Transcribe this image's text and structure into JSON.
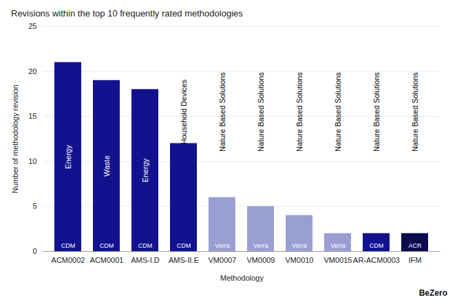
{
  "chart_data": {
    "type": "bar",
    "title": "Revisions within the top 10 frequently rated methodologies",
    "x_label": "Methodology",
    "y_label": "Number of methodology revision",
    "categories": [
      "ACM0002",
      "ACM0001",
      "AMS-I.D",
      "AMS-II.E",
      "VM0007",
      "VM0009",
      "VM0010",
      "VM0015",
      "AR-ACM0003",
      "IFM"
    ],
    "values": [
      21,
      19,
      18,
      12,
      6,
      5,
      4,
      2,
      2,
      2
    ],
    "colors": [
      "#12128f",
      "#12128f",
      "#12128f",
      "#12128f",
      "#9a9fd3",
      "#9a9fd3",
      "#9a9fd3",
      "#9a9fd3",
      "#12128f",
      "#0b0b4f"
    ],
    "registries": [
      "CDM",
      "CDM",
      "CDM",
      "CDM",
      "Verra",
      "Verra",
      "Verra",
      "Verra",
      "CDM",
      "ACR"
    ],
    "sectors": [
      "Energy",
      "Waste",
      "Energy",
      "Household Devices",
      "Nature Based Solutions",
      "Nature Based Solutions",
      "Nature Based Solutions",
      "Nature Based Solutions",
      "Nature Based Solutions",
      "Nature Based Solutions"
    ],
    "ylim": [
      0,
      25
    ],
    "yticks": [
      0,
      5,
      10,
      15,
      20,
      25
    ],
    "grid": true,
    "credit": "BeZero"
  }
}
